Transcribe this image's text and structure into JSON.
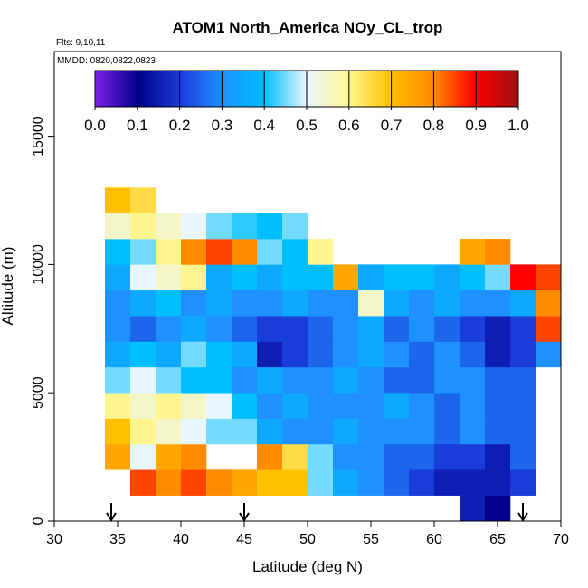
{
  "chart_data": {
    "type": "heatmap",
    "title": "ATOM1 North_America NOy_CL_trop",
    "flights": "Flts: 9,10,11",
    "dates": "MMDD: 0820,0822,0823",
    "xlabel": "Latitude (deg N)",
    "ylabel": "Altitude (m)",
    "xlim": [
      30,
      70
    ],
    "ylim": [
      0,
      18300
    ],
    "xticks": [
      30,
      35,
      40,
      45,
      50,
      55,
      60,
      65,
      70
    ],
    "yticks": [
      0,
      5000,
      10000,
      15000
    ],
    "x_bins": [
      34,
      36,
      38,
      40,
      42,
      44,
      46,
      48,
      50,
      52,
      54,
      56,
      58,
      60,
      62,
      64,
      66,
      68,
      70
    ],
    "y_bins": [
      0,
      1000,
      2000,
      3000,
      4000,
      5000,
      6000,
      7000,
      8000,
      9000,
      10000,
      11000,
      12000,
      13000
    ],
    "z": [
      [
        null,
        null,
        null,
        null,
        null,
        null,
        null,
        null,
        null,
        null,
        null,
        null,
        null,
        null,
        0.15,
        0.1,
        null,
        null
      ],
      [
        null,
        0.85,
        0.8,
        0.85,
        0.8,
        0.75,
        0.7,
        0.7,
        0.45,
        0.35,
        0.3,
        0.25,
        0.2,
        0.15,
        0.15,
        0.15,
        0.2,
        null
      ],
      [
        0.75,
        0.5,
        0.75,
        0.8,
        null,
        null,
        0.8,
        0.65,
        0.45,
        0.3,
        0.3,
        0.25,
        0.25,
        0.2,
        0.2,
        0.15,
        0.25,
        null
      ],
      [
        0.7,
        0.6,
        0.55,
        0.5,
        0.45,
        0.45,
        0.35,
        0.3,
        0.3,
        0.35,
        0.3,
        0.3,
        0.3,
        0.25,
        0.3,
        0.25,
        0.25,
        null
      ],
      [
        0.6,
        0.55,
        0.6,
        0.55,
        0.5,
        0.4,
        0.3,
        0.35,
        0.3,
        0.3,
        0.3,
        0.35,
        0.3,
        0.25,
        0.3,
        0.25,
        0.25,
        null
      ],
      [
        0.45,
        0.5,
        0.45,
        0.4,
        0.4,
        0.3,
        0.35,
        0.3,
        0.3,
        0.35,
        0.3,
        0.25,
        0.25,
        0.3,
        0.3,
        0.25,
        0.25,
        null
      ],
      [
        0.35,
        0.4,
        0.35,
        0.45,
        0.4,
        0.35,
        0.15,
        0.2,
        0.25,
        0.3,
        0.35,
        0.3,
        0.25,
        0.3,
        0.25,
        0.15,
        0.2,
        0.3
      ],
      [
        0.3,
        0.25,
        0.3,
        0.35,
        0.3,
        0.25,
        0.2,
        0.2,
        0.25,
        0.3,
        0.35,
        0.25,
        0.3,
        0.25,
        0.2,
        0.15,
        0.2,
        0.85
      ],
      [
        0.3,
        0.35,
        0.4,
        0.3,
        0.35,
        0.3,
        0.3,
        0.35,
        0.3,
        0.3,
        0.55,
        0.35,
        0.3,
        0.35,
        0.3,
        0.3,
        0.35,
        0.8
      ],
      [
        0.35,
        0.5,
        0.55,
        0.6,
        0.35,
        0.4,
        0.35,
        0.4,
        0.4,
        0.75,
        0.35,
        0.4,
        0.4,
        0.35,
        0.4,
        0.45,
        0.9,
        0.85
      ],
      [
        0.4,
        0.45,
        0.6,
        0.8,
        0.85,
        0.8,
        0.45,
        0.4,
        0.6,
        null,
        null,
        null,
        null,
        null,
        0.75,
        0.8,
        null,
        null
      ],
      [
        0.55,
        0.6,
        0.55,
        0.5,
        0.45,
        0.42,
        0.4,
        0.45,
        null,
        null,
        null,
        null,
        null,
        null,
        null,
        null,
        null,
        null
      ],
      [
        0.7,
        0.65,
        null,
        null,
        null,
        null,
        null,
        null,
        null,
        null,
        null,
        null,
        null,
        null,
        null,
        null,
        null,
        null
      ]
    ],
    "colorbar_ticks": [
      {
        "value": 0,
        "label": "0.0"
      },
      0.1,
      0.2,
      0.3,
      0.4,
      0.5,
      0.6,
      0.7,
      0.8,
      0.9,
      {
        "value": 1,
        "label": "1.0"
      }
    ],
    "colormap": [
      "#7a1fe8",
      "#00008b",
      "#1a3cd8",
      "#1e90ff",
      "#00bfff",
      "#e8f6ff",
      "#fff68f",
      "#ffc000",
      "#ff8c00",
      "#ff0000",
      "#a01010"
    ],
    "arrows": [
      34.5,
      45,
      67
    ]
  }
}
